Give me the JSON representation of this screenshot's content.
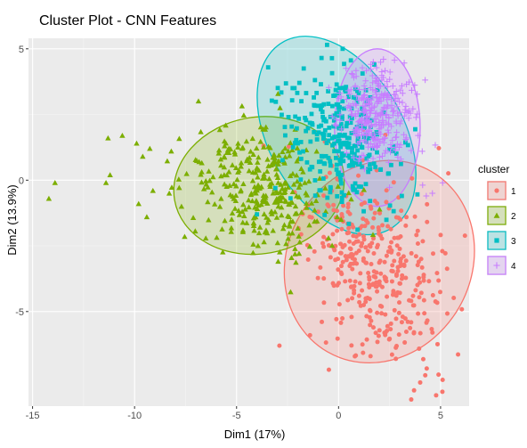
{
  "chart_data": {
    "type": "scatter",
    "title": "Cluster Plot - CNN Features",
    "xlabel": "Dim1 (17%)",
    "ylabel": "Dim2 (13.9%)",
    "xlim": [
      -15.2,
      6.4
    ],
    "ylim": [
      -8.6,
      5.4
    ],
    "x_ticks": [
      -15,
      -10,
      -5,
      0,
      5
    ],
    "x_tick_labels": [
      "-15",
      "-10",
      "-5",
      "0",
      "5"
    ],
    "y_ticks": [
      -5,
      0,
      5
    ],
    "y_tick_labels": [
      "-5",
      "0",
      "5"
    ],
    "grid": true,
    "legend": {
      "title": "cluster",
      "position": "right"
    },
    "series": [
      {
        "name": "1",
        "color": "#F8766D",
        "shape": "circle",
        "ellipse": {
          "cx": 2.0,
          "cy": -3.1,
          "rx": 5.1,
          "ry": 3.5,
          "angle_deg": -60
        },
        "generator": {
          "n": 380,
          "seed": 11,
          "cx": 1.7,
          "cy": -3.3,
          "sx": 1.55,
          "sy": 1.8,
          "rho": -0.35
        },
        "extra_points": [
          [
            -2.9,
            -6.3
          ],
          [
            4.9,
            -7.4
          ],
          [
            5.1,
            -7.6
          ],
          [
            3.7,
            -8.0
          ],
          [
            4.0,
            -7.7
          ],
          [
            -1.4,
            -5.9
          ],
          [
            4.6,
            -5.8
          ]
        ]
      },
      {
        "name": "2",
        "color": "#7CAE00",
        "shape": "triangle",
        "ellipse": {
          "cx": -3.9,
          "cy": -0.2,
          "rx": 4.2,
          "ry": 2.6,
          "angle_deg": -10
        },
        "generator": {
          "n": 330,
          "seed": 22,
          "cx": -3.8,
          "cy": -0.3,
          "sx": 1.75,
          "sy": 1.15,
          "rho": -0.2
        },
        "extra_points": [
          [
            -14.2,
            -0.7
          ],
          [
            -13.9,
            -0.1
          ],
          [
            -11.3,
            1.6
          ],
          [
            -10.6,
            1.7
          ],
          [
            -11.4,
            -0.1
          ],
          [
            -11.2,
            0.2
          ],
          [
            -9.9,
            1.4
          ],
          [
            -9.6,
            0.9
          ],
          [
            -9.8,
            -0.9
          ],
          [
            -9.4,
            -1.4
          ],
          [
            -9.1,
            -0.4
          ],
          [
            -8.3,
            -0.5
          ],
          [
            -7.7,
            -1.0
          ]
        ]
      },
      {
        "name": "3",
        "color": "#00BFC4",
        "shape": "square",
        "ellipse": {
          "cx": -0.1,
          "cy": 1.7,
          "rx": 3.3,
          "ry": 4.1,
          "angle_deg": 150
        },
        "generator": {
          "n": 300,
          "seed": 33,
          "cx": 0.0,
          "cy": 1.6,
          "sx": 1.35,
          "sy": 1.35,
          "rho": -0.3
        },
        "extra_points": [
          [
            0.2,
            5.0
          ],
          [
            -2.0,
            1.4
          ],
          [
            -3.1,
            -0.3
          ],
          [
            -4.0,
            -1.3
          ],
          [
            3.1,
            -0.6
          ]
        ]
      },
      {
        "name": "4",
        "color": "#C77CFF",
        "shape": "plus",
        "ellipse": {
          "cx": 1.9,
          "cy": 2.0,
          "rx": 2.1,
          "ry": 3.0,
          "angle_deg": 0
        },
        "generator": {
          "n": 320,
          "seed": 44,
          "cx": 1.8,
          "cy": 2.4,
          "sx": 0.9,
          "sy": 0.85,
          "rho": 0.05
        },
        "extra_points": [
          [
            4.3,
            -0.6
          ],
          [
            4.6,
            -0.5
          ],
          [
            5.1,
            -0.1
          ],
          [
            4.1,
            1.1
          ],
          [
            3.9,
            1.7
          ],
          [
            1.7,
            4.5
          ],
          [
            2.2,
            4.6
          ]
        ]
      }
    ],
    "style": {
      "panel_bg": "#EBEBEB",
      "grid_major": "#FFFFFF",
      "grid_minor": "#F5F5F5"
    }
  }
}
